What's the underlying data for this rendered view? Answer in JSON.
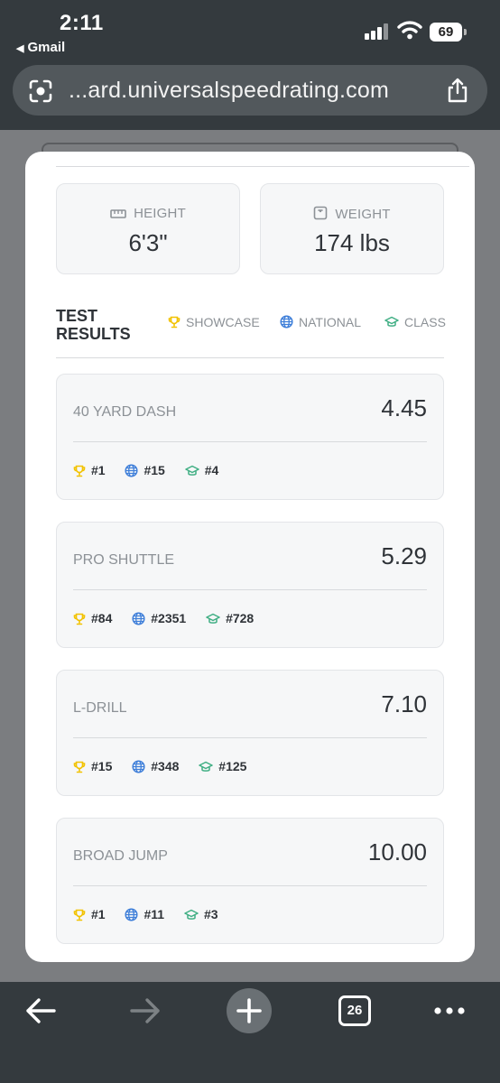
{
  "status_bar": {
    "time": "2:11",
    "back_app": "Gmail",
    "battery": "69"
  },
  "browser": {
    "url": "...ard.universalspeedrating.com",
    "tab_count": "26"
  },
  "measurements": {
    "height": {
      "label": "HEIGHT",
      "value": "6'3\"",
      "icon": "ruler-icon"
    },
    "weight": {
      "label": "WEIGHT",
      "value": "174 lbs",
      "icon": "scale-icon"
    }
  },
  "results": {
    "title_line1": "TEST",
    "title_line2": "RESULTS",
    "legend": {
      "showcase": "SHOWCASE",
      "national": "NATIONAL",
      "class": "CLASS"
    },
    "tests": [
      {
        "name": "40 YARD DASH",
        "score": "4.45",
        "showcase": "#1",
        "national": "#15",
        "class": "#4"
      },
      {
        "name": "PRO SHUTTLE",
        "score": "5.29",
        "showcase": "#84",
        "national": "#2351",
        "class": "#728"
      },
      {
        "name": "L-DRILL",
        "score": "7.10",
        "showcase": "#15",
        "national": "#348",
        "class": "#125"
      },
      {
        "name": "BROAD JUMP",
        "score": "10.00",
        "showcase": "#1",
        "national": "#11",
        "class": "#3"
      }
    ]
  },
  "colors": {
    "trophy": "#f2c200",
    "globe": "#3f7fd9",
    "cap": "#3fae83",
    "text_dark": "#2f3338",
    "text_muted": "#8c9196"
  }
}
